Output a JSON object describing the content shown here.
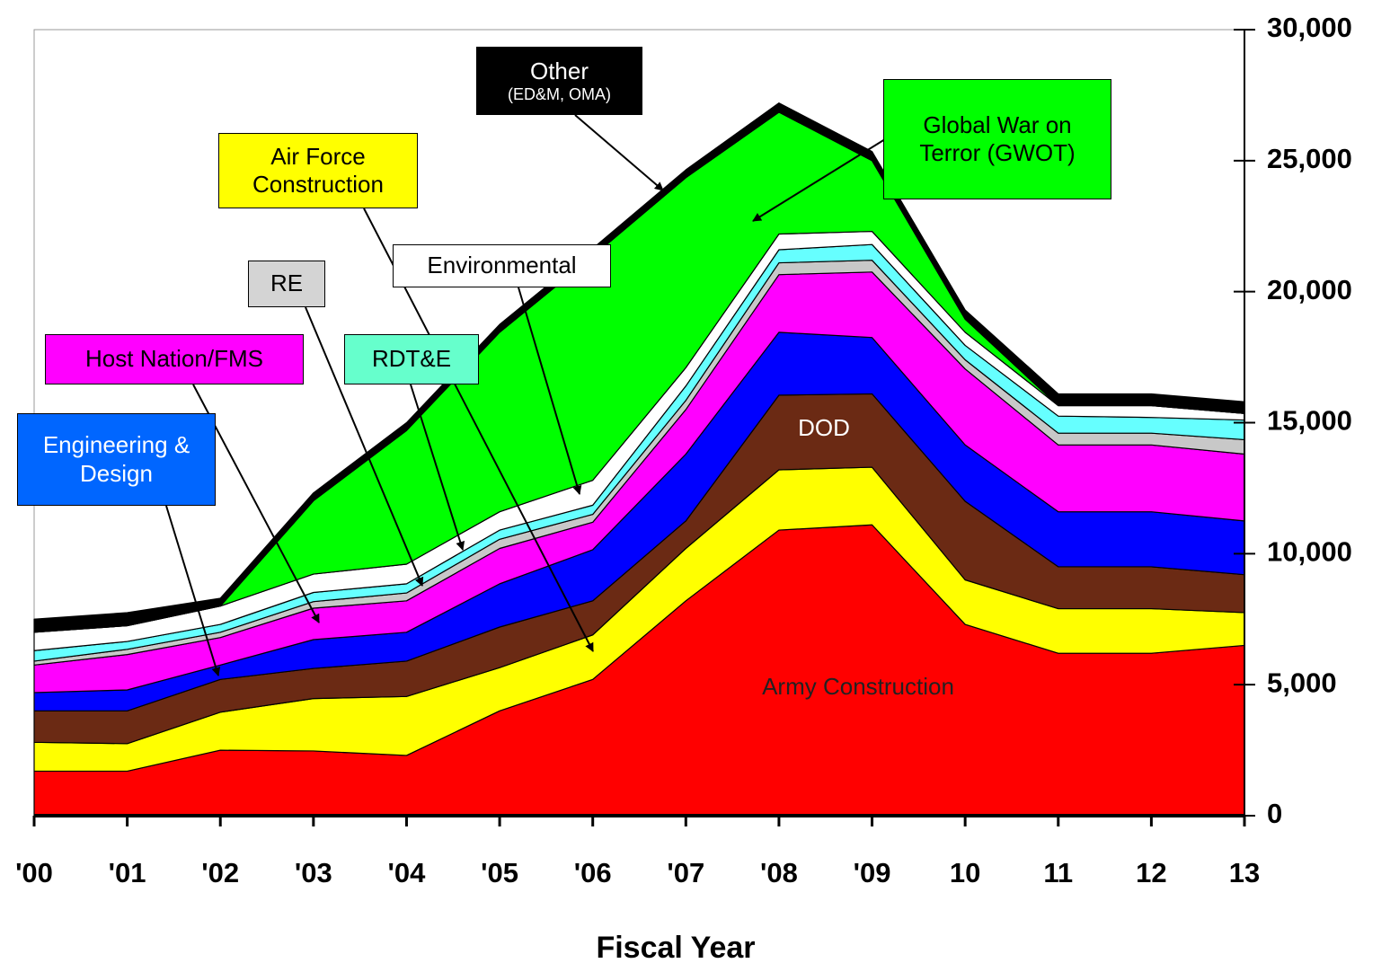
{
  "chart_data": {
    "type": "stacked_area",
    "xlabel": "Fiscal Year",
    "categories": [
      "'00",
      "'01",
      "'02",
      "'03",
      "'04",
      "'05",
      "'06",
      "'07",
      "'08",
      "'09",
      "10",
      "11",
      "12",
      "13"
    ],
    "ylim": [
      0,
      30000
    ],
    "yticks": [
      0,
      {
        "value": 5000,
        "label": "5,000"
      },
      {
        "value": 10000,
        "label": "10,000"
      },
      {
        "value": 15000,
        "label": "15,000"
      },
      {
        "value": 20000,
        "label": "20,000"
      },
      {
        "value": 25000,
        "label": "25,000"
      },
      {
        "value": 30000,
        "label": "30,000"
      }
    ],
    "series": [
      {
        "name": "Army Construction",
        "color": "#ff0000",
        "values": [
          1700,
          1700,
          2500,
          2470,
          2300,
          4000,
          5200,
          8200,
          10900,
          11100,
          7300,
          6200,
          6200,
          6500
        ]
      },
      {
        "name": "Air Force Construction",
        "color": "#ffff00",
        "values": [
          1100,
          1050,
          1450,
          2000,
          2250,
          1650,
          1700,
          2000,
          2300,
          2200,
          1700,
          1700,
          1700,
          1250
        ]
      },
      {
        "name": "DOD",
        "color": "#6b2a14",
        "values": [
          1200,
          1250,
          1250,
          1150,
          1350,
          1550,
          1300,
          1050,
          2850,
          2800,
          3000,
          1600,
          1600,
          1450
        ]
      },
      {
        "name": "Engineering & Design",
        "color": "#0000ff",
        "values": [
          700,
          800,
          550,
          1100,
          1100,
          1650,
          1950,
          2550,
          2400,
          2150,
          2150,
          2100,
          2100,
          2050
        ]
      },
      {
        "name": "Host Nation/FMS",
        "color": "#ff00ff",
        "values": [
          1050,
          1350,
          1050,
          1200,
          1200,
          1350,
          1050,
          1700,
          2200,
          2500,
          2900,
          2550,
          2550,
          2550
        ]
      },
      {
        "name": "RE",
        "color": "#c8c8c8",
        "values": [
          150,
          200,
          200,
          250,
          300,
          350,
          300,
          350,
          450,
          450,
          350,
          450,
          450,
          550
        ]
      },
      {
        "name": "RDT&E",
        "color": "#66ffff",
        "values": [
          400,
          300,
          300,
          350,
          350,
          350,
          350,
          550,
          500,
          600,
          550,
          650,
          600,
          750
        ]
      },
      {
        "name": "Environmental",
        "color": "#ffffff",
        "values": [
          700,
          600,
          700,
          700,
          750,
          700,
          950,
          700,
          600,
          500,
          500,
          400,
          450,
          250
        ]
      },
      {
        "name": "Global War on Terror (GWOT)",
        "color": "#00ff00",
        "values": [
          0,
          0,
          0,
          2800,
          5100,
          6850,
          8550,
          7250,
          4650,
          2700,
          500,
          0,
          0,
          0
        ]
      },
      {
        "name": "Other",
        "note": "(ED&M, OMA)",
        "color": "#000000",
        "values": [
          500,
          500,
          300,
          300,
          300,
          300,
          300,
          300,
          350,
          350,
          350,
          450,
          450,
          450
        ]
      }
    ]
  }
}
